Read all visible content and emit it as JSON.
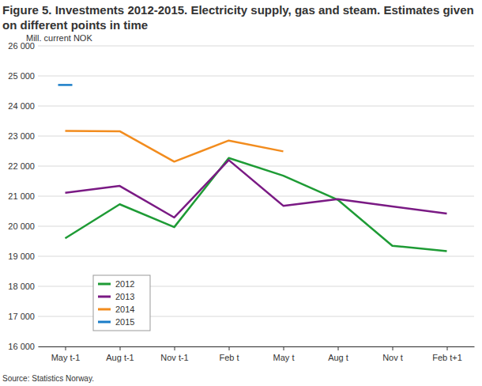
{
  "chart_data": {
    "type": "line",
    "title": "Figure 5. Investments 2012-2015. Electricity supply, gas and steam. Estimates given on different points in time",
    "y_label": "Mill. current NOK",
    "source": "Source: Statistics Norway.",
    "categories": [
      "May t-1",
      "Aug t-1",
      "Nov t-1",
      "Feb t",
      "May t",
      "Aug t",
      "Nov t",
      "Feb t+1"
    ],
    "series": [
      {
        "name": "2012",
        "color": "#1e9b35",
        "values": [
          19600,
          20730,
          19970,
          22270,
          21680,
          20880,
          19350,
          19170
        ]
      },
      {
        "name": "2013",
        "color": "#7a1a84",
        "values": [
          21110,
          21340,
          20290,
          22200,
          20680,
          20900,
          20660,
          20420
        ]
      },
      {
        "name": "2014",
        "color": "#f28c1e",
        "values": [
          23170,
          23160,
          22150,
          22850,
          22490,
          null,
          null,
          null
        ]
      },
      {
        "name": "2015",
        "color": "#1a7dc8",
        "marker": "dash",
        "values": [
          24700,
          null,
          null,
          null,
          null,
          null,
          null,
          null
        ]
      }
    ],
    "ylim": [
      16000,
      26000
    ],
    "yticks": [
      {
        "value": 16000,
        "label": "16 000"
      },
      {
        "value": 17000,
        "label": "17 000"
      },
      {
        "value": 18000,
        "label": "18 000"
      },
      {
        "value": 19000,
        "label": "19 000"
      },
      {
        "value": 20000,
        "label": "20 000"
      },
      {
        "value": 21000,
        "label": "21 000"
      },
      {
        "value": 22000,
        "label": "22 000"
      },
      {
        "value": 23000,
        "label": "23 000"
      },
      {
        "value": 24000,
        "label": "24 000"
      },
      {
        "value": 25000,
        "label": "25 000"
      },
      {
        "value": 26000,
        "label": "26 000"
      }
    ],
    "grid": true,
    "legend": "lower left"
  }
}
